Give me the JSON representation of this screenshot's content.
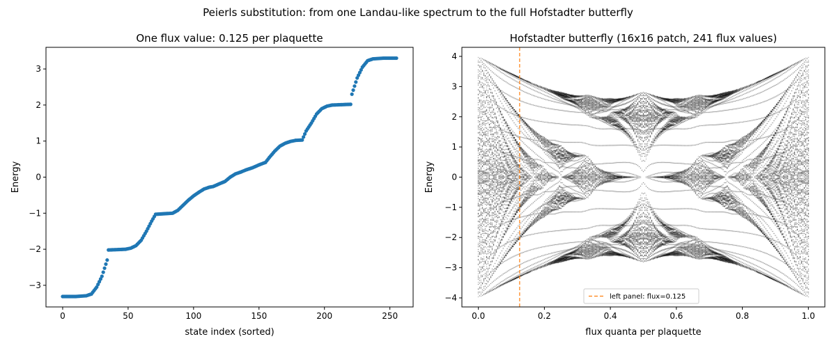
{
  "figure": {
    "suptitle": "Peierls substitution: from one Landau-like spectrum to the full Hofstadter butterfly"
  },
  "chart_data": [
    {
      "type": "scatter",
      "title": "One flux value: 0.125 per plaquette",
      "xlabel": "state index (sorted)",
      "ylabel": "Energy",
      "xlim": [
        -12.75,
        267.75
      ],
      "ylim": [
        -3.6,
        3.6
      ],
      "xticks": [
        0,
        50,
        100,
        150,
        200,
        250
      ],
      "yticks": [
        -3,
        -2,
        -1,
        0,
        1,
        2,
        3
      ],
      "marker_color": "#1f77b4",
      "n_points": 256,
      "profile": [
        [
          0,
          -3.31
        ],
        [
          10,
          -3.31
        ],
        [
          18,
          -3.29
        ],
        [
          22,
          -3.24
        ],
        [
          26,
          -3.05
        ],
        [
          30,
          -2.75
        ],
        [
          34,
          -2.3
        ],
        [
          35,
          -2.02
        ],
        [
          48,
          -2.0
        ],
        [
          52,
          -1.97
        ],
        [
          56,
          -1.9
        ],
        [
          60,
          -1.75
        ],
        [
          64,
          -1.5
        ],
        [
          68,
          -1.22
        ],
        [
          71,
          -1.03
        ],
        [
          84,
          -1.0
        ],
        [
          88,
          -0.92
        ],
        [
          92,
          -0.78
        ],
        [
          96,
          -0.64
        ],
        [
          100,
          -0.52
        ],
        [
          104,
          -0.42
        ],
        [
          108,
          -0.33
        ],
        [
          112,
          -0.28
        ],
        [
          115,
          -0.26
        ],
        [
          120,
          -0.18
        ],
        [
          124,
          -0.12
        ],
        [
          128,
          0.0
        ],
        [
          132,
          0.09
        ],
        [
          136,
          0.14
        ],
        [
          140,
          0.2
        ],
        [
          145,
          0.26
        ],
        [
          150,
          0.34
        ],
        [
          155,
          0.41
        ],
        [
          158,
          0.55
        ],
        [
          162,
          0.72
        ],
        [
          166,
          0.86
        ],
        [
          170,
          0.94
        ],
        [
          174,
          0.99
        ],
        [
          178,
          1.02
        ],
        [
          183,
          1.03
        ],
        [
          186,
          1.28
        ],
        [
          190,
          1.5
        ],
        [
          194,
          1.75
        ],
        [
          198,
          1.9
        ],
        [
          202,
          1.97
        ],
        [
          206,
          2.0
        ],
        [
          220,
          2.02
        ],
        [
          221,
          2.3
        ],
        [
          225,
          2.75
        ],
        [
          229,
          3.05
        ],
        [
          233,
          3.23
        ],
        [
          237,
          3.28
        ],
        [
          245,
          3.3
        ],
        [
          255,
          3.3
        ]
      ]
    },
    {
      "type": "scatter",
      "title": "Hofstadter butterfly (16x16 patch, 241 flux values)",
      "xlabel": "flux quanta per plaquette",
      "ylabel": "Energy",
      "xlim": [
        -0.05,
        1.05
      ],
      "ylim": [
        -4.3,
        4.3
      ],
      "xticks": [
        0.0,
        0.2,
        0.4,
        0.6,
        0.8,
        1.0
      ],
      "yticks": [
        -4,
        -3,
        -2,
        -1,
        0,
        1,
        2,
        3,
        4
      ],
      "lattice": 16,
      "n_flux": 241,
      "marker_color": "#000000",
      "marker_line": {
        "x": 0.125,
        "color": "#ff7f0e",
        "style": "dashed"
      },
      "legend": {
        "label": "left panel: flux=0.125",
        "loc": "lower center"
      }
    }
  ]
}
